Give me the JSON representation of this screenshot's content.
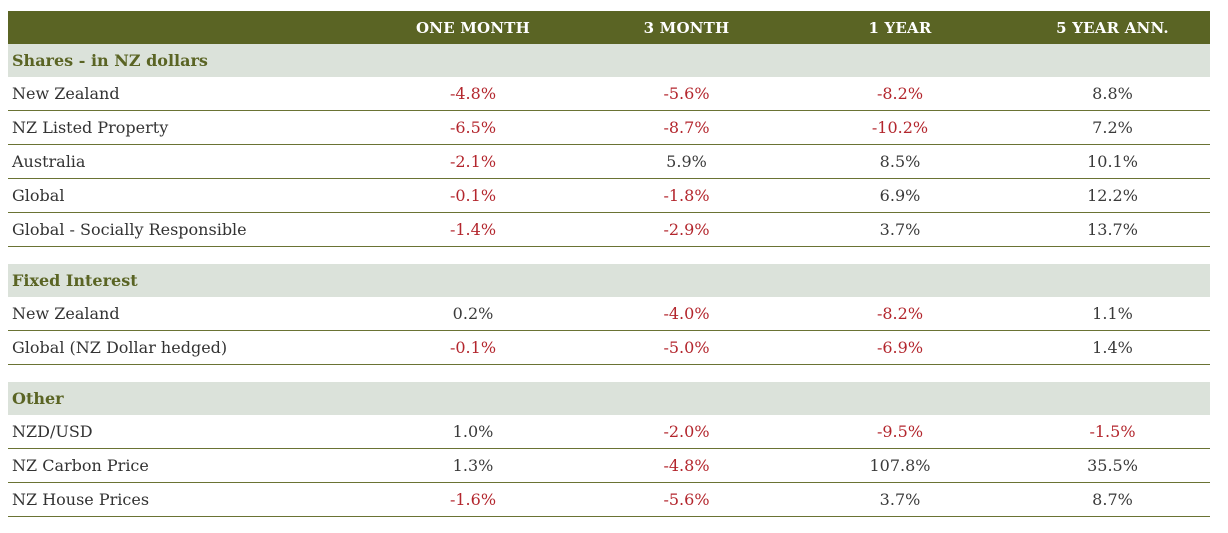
{
  "columns": [
    "",
    "ONE MONTH",
    "3 MONTH",
    "1 YEAR",
    "5 YEAR ANN."
  ],
  "colors": {
    "header_bg": "#5a6424",
    "section_bg": "#dbe2da",
    "section_text": "#5a6424",
    "negative": "#b3262d"
  },
  "sections": [
    {
      "title": "Shares - in NZ dollars",
      "rows": [
        {
          "label": "New Zealand",
          "values": [
            "-4.8%",
            "-5.6%",
            "-8.2%",
            "8.8%"
          ]
        },
        {
          "label": "NZ Listed Property",
          "values": [
            "-6.5%",
            "-8.7%",
            "-10.2%",
            "7.2%"
          ]
        },
        {
          "label": "Australia",
          "values": [
            "-2.1%",
            "5.9%",
            "8.5%",
            "10.1%"
          ]
        },
        {
          "label": "Global",
          "values": [
            "-0.1%",
            "-1.8%",
            "6.9%",
            "12.2%"
          ]
        },
        {
          "label": "Global - Socially Responsible",
          "values": [
            "-1.4%",
            "-2.9%",
            "3.7%",
            "13.7%"
          ]
        }
      ]
    },
    {
      "title": "Fixed Interest",
      "rows": [
        {
          "label": "New Zealand",
          "values": [
            "0.2%",
            "-4.0%",
            "-8.2%",
            "1.1%"
          ]
        },
        {
          "label": "Global (NZ Dollar hedged)",
          "values": [
            "-0.1%",
            "-5.0%",
            "-6.9%",
            "1.4%"
          ]
        }
      ]
    },
    {
      "title": "Other",
      "rows": [
        {
          "label": "NZD/USD",
          "values": [
            "1.0%",
            "-2.0%",
            "-9.5%",
            "-1.5%"
          ]
        },
        {
          "label": "NZ Carbon Price",
          "values": [
            "1.3%",
            "-4.8%",
            "107.8%",
            "35.5%"
          ]
        },
        {
          "label": "NZ House Prices",
          "values": [
            "-1.6%",
            "-5.6%",
            "3.7%",
            "8.7%"
          ]
        }
      ]
    }
  ]
}
